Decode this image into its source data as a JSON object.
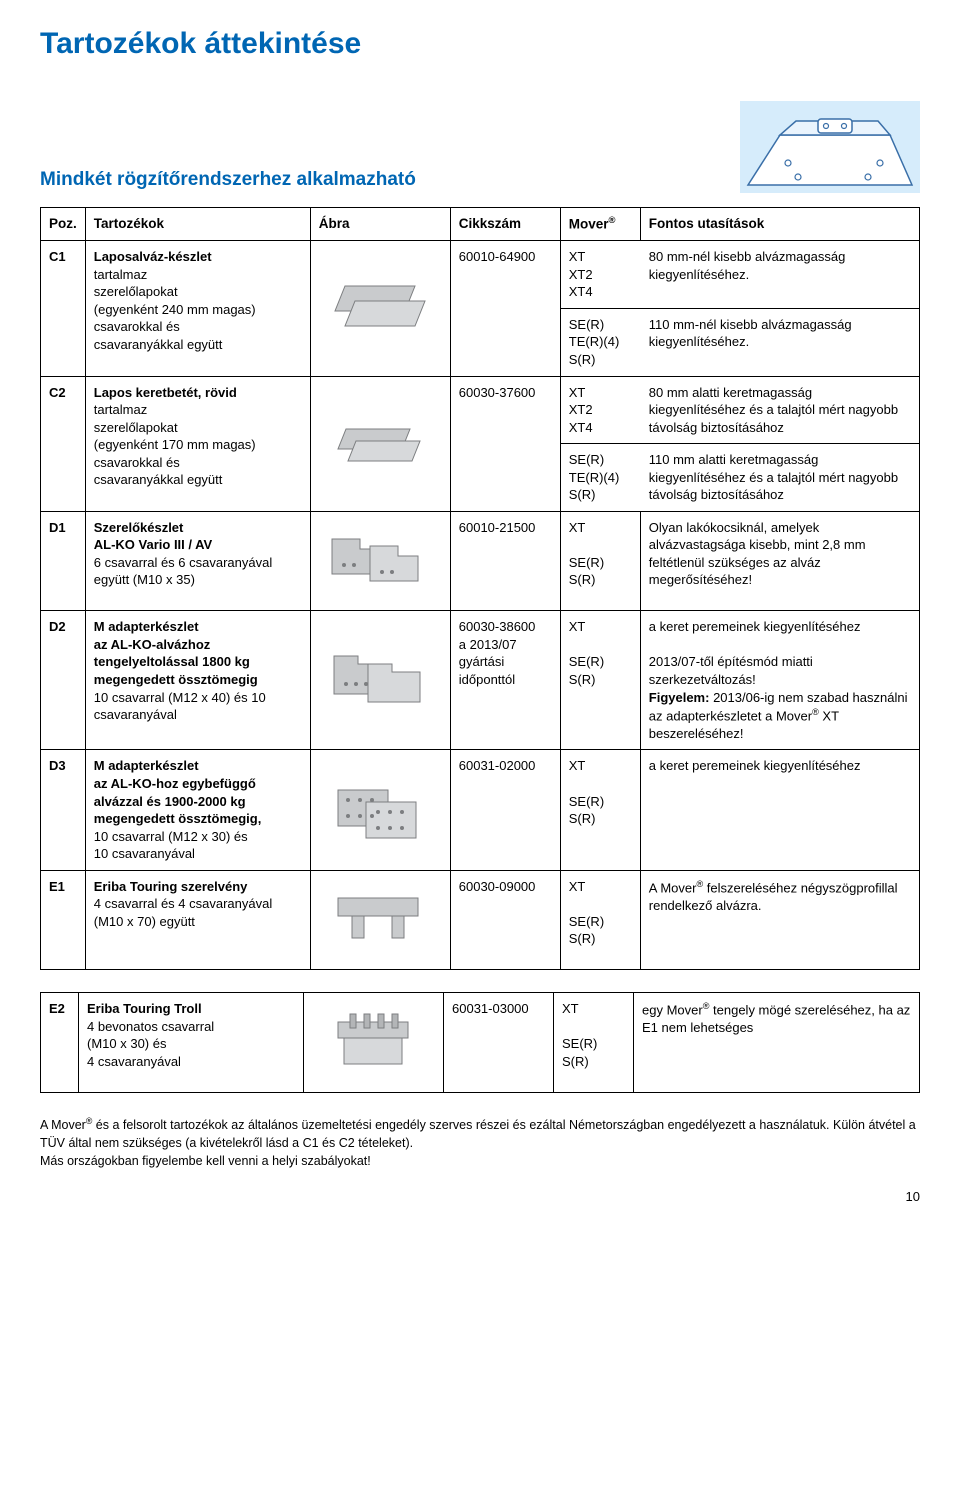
{
  "page": {
    "title": "Tartozékok áttekintése",
    "subtitle": "Mindkét rögzítőrendszerhez alkalmazható",
    "pagenum": "10"
  },
  "colors": {
    "heading": "#0066b3",
    "text": "#000000",
    "border": "#000000",
    "bg": "#ffffff",
    "part_fill": "#c9cbcd",
    "part_stroke": "#7c7e80",
    "hero_sky": "#d6ecfb",
    "hero_line": "#3a6fa8"
  },
  "headers": {
    "poz": "Poz.",
    "tart": "Tartozékok",
    "abra": "Ábra",
    "cikk": "Cikkszám",
    "mover": "Mover",
    "fontos": "Fontos utasítások"
  },
  "rows": [
    {
      "id": "C1",
      "desc_html": "<span class='bold'>Laposalváz-készlet</span><br>tartalmaz<br>szerelőlapokat<br>(egyenként 240 mm magas)<br>csavarokkal és<br>csavaranyákkal együtt",
      "cikk": "60010-64900",
      "split": [
        {
          "mover": "XT<br>XT2<br>XT4",
          "note": "80 mm-nél kisebb alvázmagasság kiegyenlítéséhez."
        },
        {
          "mover": "SE(R)<br>TE(R)(4)<br>S(R)",
          "note": "110 mm-nél kisebb alvázmagasság kiegyenlítéséhez."
        }
      ],
      "svg": "plates"
    },
    {
      "id": "C2",
      "desc_html": "<span class='bold'>Lapos keretbetét, rövid</span><br>tartalmaz<br>szerelőlapokat<br>(egyenként 170 mm magas)<br>csavarokkal és<br>csavaranyákkal együtt",
      "cikk": "60030-37600",
      "split": [
        {
          "mover": "XT<br>XT2<br>XT4",
          "note": "80 mm alatti keretmagasság kiegyenlítéséhez és a talajtól mért nagyobb távolság biztosításához"
        },
        {
          "mover": "SE(R)<br>TE(R)(4)<br>S(R)",
          "note": "110 mm alatti keretmagasság kiegyenlítéséhez és a talajtól mért nagyobb távolság biztosításához"
        }
      ],
      "svg": "plates2"
    },
    {
      "id": "D1",
      "desc_html": "<span class='bold'>Szerelőkészlet<br>AL-KO Vario III / AV</span><br>6 csavarral és 6 csavaranyával együtt (M10 x 35)",
      "cikk": "60010-21500",
      "mover": "XT<br><br>SE(R)<br>S(R)",
      "note": "Olyan lakókocsiknál, amelyek alvázvastagsága kisebb, mint 2,8 mm feltétlenül szükséges az alváz megerősítéséhez!",
      "svg": "bracket1"
    },
    {
      "id": "D2",
      "desc_html": "<span class='bold'>M adapterkészlet<br>az AL-KO-alvázhoz<br>tengelyeltolással 1800 kg megengedett össztömegig</span><br>10 csavarral (M12 x 40) és 10 csavaranyával",
      "cikk": "60030-38600<br>a 2013/07<br>gyártási<br>időponttól",
      "mover": "XT<br><br>SE(R)<br>S(R)",
      "note": "a keret peremeinek kiegyenlítéséhez<br><br>2013/07-től építésmód miatti szerkezetváltozás!<br><span class='bold'>Figyelem:</span> 2013/06-ig nem szabad használni az adapterkészletet a Mover<span class='sup'>®</span> XT beszereléséhez!",
      "svg": "bracket2"
    },
    {
      "id": "D3",
      "desc_html": "<span class='bold'>M adapterkészlet<br>az AL-KO-hoz egybefüggő alvázzal és 1900-2000 kg megengedett össztömegig,</span><br>10 csavarral (M12 x 30) és<br>10 csavaranyával",
      "cikk": "60031-02000",
      "mover": "XT<br><br>SE(R)<br>S(R)",
      "note": "a keret peremeinek kiegyenlítéséhez",
      "svg": "bracket3"
    },
    {
      "id": "E1",
      "desc_html": "<span class='bold'>Eriba Touring szerelvény</span><br>4 csavarral és 4 csavaranyával (M10 x 70) együtt",
      "cikk": "60030-09000",
      "mover": "XT<br><br>SE(R)<br>S(R)",
      "note": "A Mover<span class='sup'>®</span> felszereléséhez négyszögprofillal rendelkező alvázra.",
      "svg": "eriba1"
    }
  ],
  "rows2": [
    {
      "id": "E2",
      "desc_html": "<span class='bold'>Eriba Touring Troll</span><br>4 bevonatos csavarral<br>(M10 x 30) és<br>4 csavaranyával",
      "cikk": "60031-03000",
      "mover": "XT<br><br>SE(R)<br>S(R)",
      "note": "egy Mover<span class='sup'>®</span> tengely mögé szereléséhez, ha az E1 nem lehetséges",
      "svg": "eriba2"
    }
  ],
  "footer": "A Mover<span class='sup'>®</span> és a felsorolt tartozékok az általános üzemeltetési engedély szerves részei és ezáltal Németországban engedélyezett a használatuk. Külön átvétel a TÜV által nem szükséges (a kivételekről lásd a C1 és C2 tételeket).<br>Más országokban figyelembe kell venni a helyi szabályokat!"
}
